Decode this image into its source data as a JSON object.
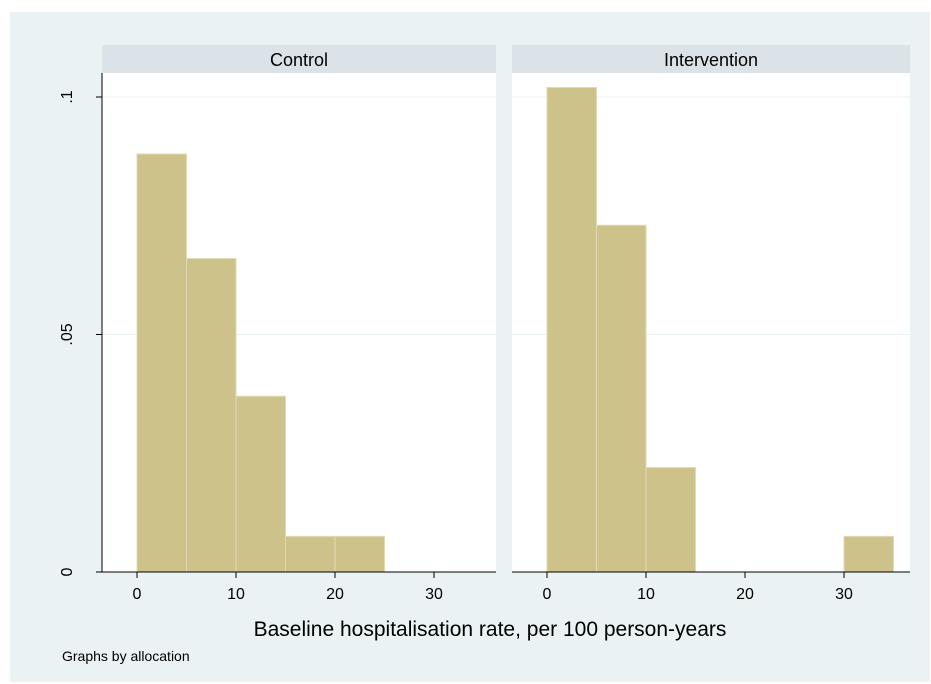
{
  "colors": {
    "background_outer": "#eaf2f3",
    "strip": "#dbe3e9",
    "bar_fill": "#cdc28a",
    "bar_edge": "#e2dab4",
    "grid": "#eaf1f5"
  },
  "chart_data": {
    "type": "bar",
    "subtype": "histogram",
    "xlabel": "Baseline hospitalisation rate, per 100 person-years",
    "ylabel": "",
    "note": "Graphs by allocation",
    "ylim": [
      0,
      0.1
    ],
    "y_ticks": [
      0,
      0.05,
      0.1
    ],
    "y_tick_labels": [
      "0",
      ".05",
      ".1"
    ],
    "xlim": [
      -3.5,
      35
    ],
    "x_ticks": [
      0,
      10,
      20,
      30
    ],
    "x_tick_labels": [
      "0",
      "10",
      "20",
      "30"
    ],
    "grid": "horizontal",
    "panels": [
      {
        "title": "Control",
        "bin_edges": [
          0,
          5,
          10,
          15,
          20,
          25
        ],
        "values": [
          0.088,
          0.066,
          0.037,
          0.0075,
          0.0075
        ]
      },
      {
        "title": "Intervention",
        "bin_edges": [
          0,
          5,
          10,
          15,
          20,
          25,
          30,
          35
        ],
        "values": [
          0.102,
          0.073,
          0.022,
          0,
          0,
          0,
          0.0075
        ]
      }
    ]
  }
}
